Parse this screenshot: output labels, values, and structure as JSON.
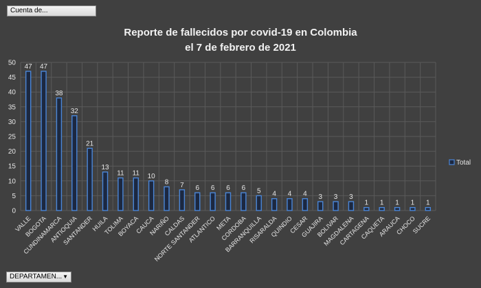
{
  "pivot": {
    "value_field_label": "Cuenta de...",
    "axis_field_label": "DEPARTAMEN...",
    "dropdown_glyph": "▼"
  },
  "colors": {
    "background": "#404040",
    "gridline": "#5a5a5a",
    "bar_fill": "#1c2840",
    "bar_stroke": "#4a86d8"
  },
  "chart_data": {
    "type": "bar",
    "title": "Reporte de fallecidos por covid-19 en Colombia",
    "subtitle": "el 7 de febrero de 2021",
    "xlabel": "",
    "ylabel": "",
    "ylim": [
      0,
      50
    ],
    "yticks": [
      0,
      5,
      10,
      15,
      20,
      25,
      30,
      35,
      40,
      45,
      50
    ],
    "grid": true,
    "legend_position": "right",
    "categories": [
      "VALLE",
      "BOGOTA",
      "CUNDINAMARCA",
      "ANTIOQUIA",
      "SANTANDER",
      "HUILA",
      "TOLIMA",
      "BOYACA",
      "CAUCA",
      "NARIÑO",
      "CALDAS",
      "NORTE SANTANDER",
      "ATLANTICO",
      "META",
      "CORDOBA",
      "BARRANQUILLA",
      "RISARALDA",
      "QUINDIO",
      "CESAR",
      "GUAJIRA",
      "BOLIVAR",
      "MAGDALENA",
      "CARTAGENA",
      "CAQUETA",
      "ARAUCA",
      "CHOCO",
      "SUCRE"
    ],
    "series": [
      {
        "name": "Total",
        "values": [
          47,
          47,
          38,
          32,
          21,
          13,
          11,
          11,
          10,
          8,
          7,
          6,
          6,
          6,
          6,
          5,
          4,
          4,
          4,
          3,
          3,
          3,
          1,
          1,
          1,
          1,
          1
        ]
      }
    ]
  }
}
